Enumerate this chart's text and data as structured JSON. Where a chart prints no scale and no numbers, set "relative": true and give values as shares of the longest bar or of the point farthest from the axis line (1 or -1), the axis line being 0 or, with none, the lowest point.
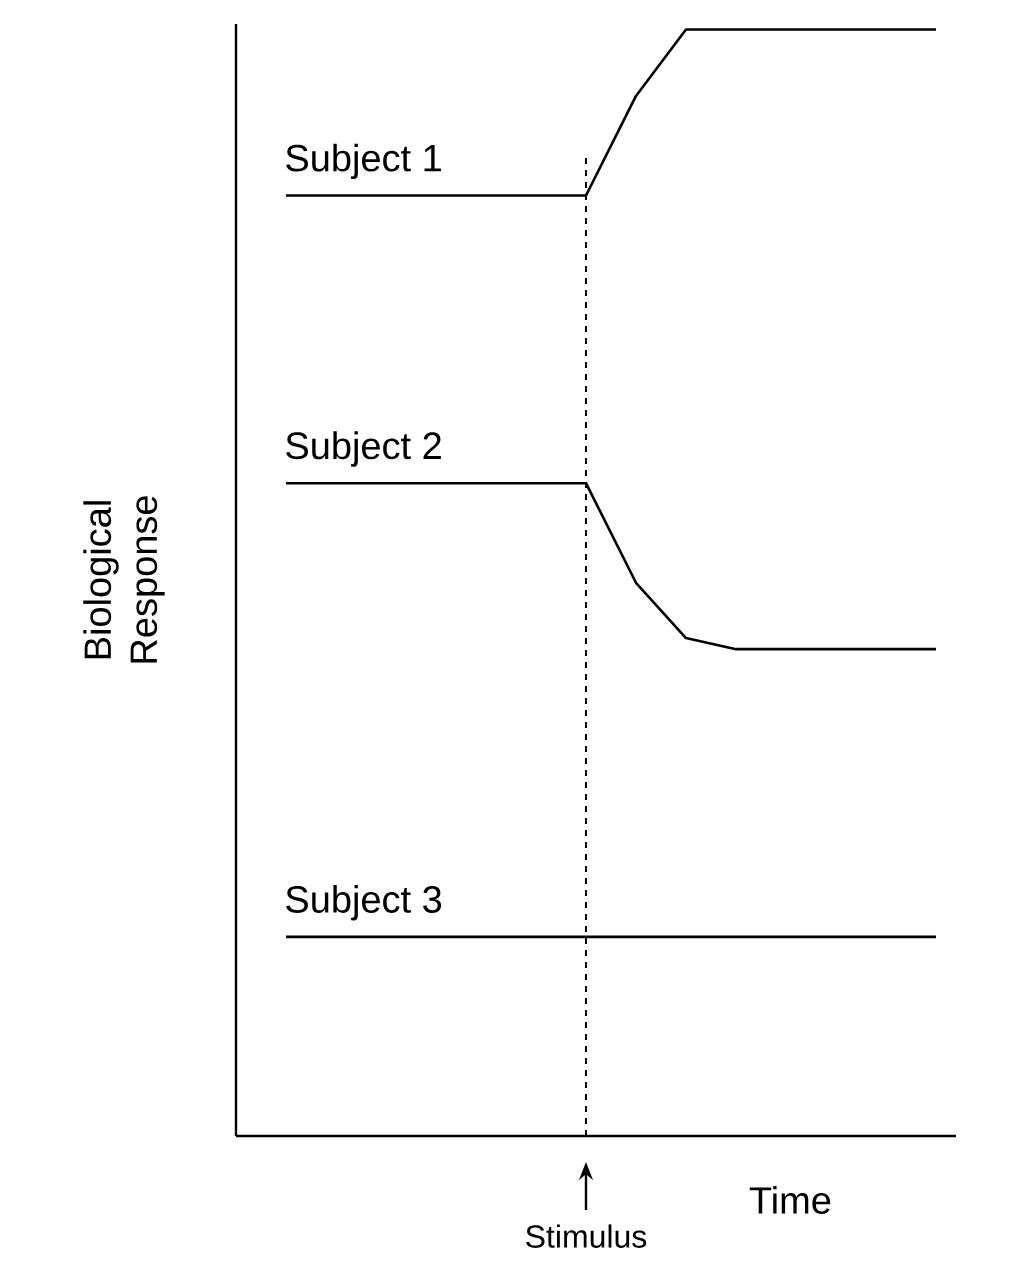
{
  "chart_data": {
    "type": "line",
    "xlabel": "Time",
    "ylabel": "Biological Response",
    "relative": true,
    "tick_labels": false,
    "marker": "none",
    "categories": [
      null,
      null,
      null,
      null,
      null,
      null,
      null,
      null,
      null,
      null,
      null,
      null,
      null,
      null
    ],
    "series": [
      {
        "name": "Subject 1",
        "color": "#000000",
        "values": [
          0.85,
          0.85,
          0.85,
          0.85,
          0.85,
          0.85,
          0.85,
          0.94,
          1.0,
          1.0,
          1.0,
          1.0,
          1.0,
          1.0
        ]
      },
      {
        "name": "Subject 2",
        "color": "#000000",
        "values": [
          0.59,
          0.59,
          0.59,
          0.59,
          0.59,
          0.59,
          0.59,
          0.5,
          0.45,
          0.44,
          0.44,
          0.44,
          0.44,
          0.44
        ]
      },
      {
        "name": "Subject 3",
        "color": "#000000",
        "values": [
          0.18,
          0.18,
          0.18,
          0.18,
          0.18,
          0.18,
          0.18,
          0.18,
          0.18,
          0.18,
          0.18,
          0.18,
          0.18,
          0.18
        ]
      }
    ],
    "annotations": [
      "Stimulus"
    ]
  }
}
